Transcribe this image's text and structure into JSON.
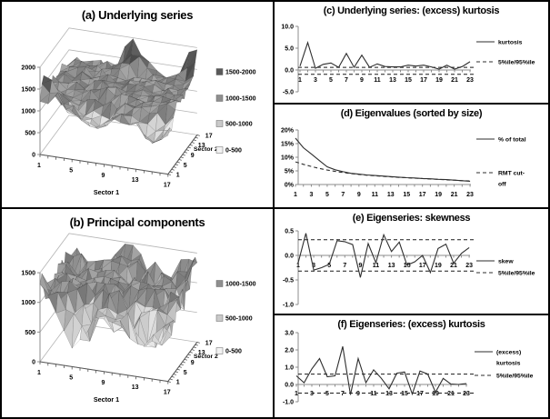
{
  "figure_caption": "six-panel statistics figure",
  "chart_data": [
    {
      "id": "a",
      "type": "surface3d",
      "title": "(a) Underlying series",
      "xlabel": "Sector 1",
      "ylabel": "Sector 2",
      "x_ticks": [
        1,
        5,
        9,
        13,
        17
      ],
      "y_ticks": [
        1,
        5,
        9,
        13,
        17
      ],
      "grid_size": 17,
      "zlim": [
        0,
        2000
      ],
      "z_ticks": [
        {
          "v": 0,
          "label": "0"
        },
        {
          "v": 500,
          "label": "500"
        },
        {
          "v": 1000,
          "label": "1000"
        },
        {
          "v": 1500,
          "label": "1500"
        },
        {
          "v": 2000,
          "label": "2000"
        }
      ],
      "legend": [
        {
          "label": "1500-2000",
          "color": "#595959"
        },
        {
          "label": "1000-1500",
          "color": "#8f8f8f"
        },
        {
          "label": "500-1000",
          "color": "#c9c9c9"
        },
        {
          "label": "0-500",
          "color": "#f2f2f2"
        }
      ],
      "bands": [
        [
          0,
          "#f2f2f2"
        ],
        [
          500,
          "#c9c9c9"
        ],
        [
          1000,
          "#8f8f8f"
        ],
        [
          1500,
          "#595959"
        ]
      ],
      "surface": {
        "seed": 7,
        "base": 1270,
        "noise": 160,
        "clamp": [
          60,
          1980
        ],
        "features": [
          [
            650,
            8,
            16,
            2.5
          ],
          [
            620,
            16,
            16,
            3
          ],
          [
            420,
            0,
            2,
            3
          ],
          [
            -420,
            7,
            1,
            10
          ],
          [
            -260,
            3,
            4,
            6
          ],
          [
            -420,
            13,
            1,
            3
          ],
          [
            -500,
            15,
            1,
            4
          ]
        ]
      },
      "shape_note": "plateau ~1000-1500 with valley in front-middle and spikes to ~2000 at back-middle, back-right and front-left corners"
    },
    {
      "id": "b",
      "type": "surface3d",
      "title": "(b) Principal components",
      "xlabel": "Sector 1",
      "ylabel": "Sector 2",
      "x_ticks": [
        1,
        5,
        9,
        13,
        17
      ],
      "y_ticks": [
        1,
        5,
        9,
        13,
        17
      ],
      "grid_size": 17,
      "zlim": [
        0,
        1500
      ],
      "z_ticks": [
        {
          "v": 0,
          "label": "0"
        },
        {
          "v": 500,
          "label": "500"
        },
        {
          "v": 1000,
          "label": "1000"
        },
        {
          "v": 1500,
          "label": "1500"
        }
      ],
      "legend": [
        {
          "label": "1000-1500",
          "color": "#8f8f8f"
        },
        {
          "label": "500-1000",
          "color": "#c9c9c9"
        },
        {
          "label": "0-500",
          "color": "#f2f2f2"
        }
      ],
      "bands": [
        [
          0,
          "#f2f2f2"
        ],
        [
          500,
          "#c9c9c9"
        ],
        [
          1000,
          "#8f8f8f"
        ]
      ],
      "surface": {
        "seed": 13,
        "base": 1060,
        "noise": 240,
        "clamp": [
          80,
          1470
        ],
        "features": [
          [
            460,
            8,
            16,
            2.5
          ],
          [
            430,
            16,
            15,
            3
          ],
          [
            330,
            0,
            1,
            2.5
          ],
          [
            -520,
            4,
            0,
            1.5
          ],
          [
            -420,
            6,
            1,
            1.2
          ],
          [
            -380,
            9,
            0,
            1.5
          ],
          [
            -550,
            14,
            1,
            5
          ],
          [
            -260,
            11,
            2,
            2
          ]
        ]
      },
      "shape_note": "jagged band ~900-1300 floating above floor, downward spikes toward 500 at the front, peaks to ~1500 at corners"
    },
    {
      "id": "c",
      "type": "line",
      "title": "(c) Underlying series: (excess) kurtosis",
      "ylim": [
        -5,
        10
      ],
      "y_ticks": [
        {
          "v": 10,
          "label": "10.0"
        },
        {
          "v": 5,
          "label": "5.0"
        },
        {
          "v": 0,
          "label": "0.0"
        },
        {
          "v": -5,
          "label": "-5.0"
        }
      ],
      "x": [
        1,
        2,
        3,
        4,
        5,
        6,
        7,
        8,
        9,
        10,
        11,
        12,
        13,
        14,
        15,
        16,
        17,
        18,
        19,
        20,
        21,
        22,
        23
      ],
      "x_tick_labels": [
        1,
        3,
        5,
        7,
        9,
        11,
        13,
        15,
        17,
        19,
        21,
        23
      ],
      "series": [
        {
          "name": "kurtosis",
          "style": "solid",
          "values": [
            0.9,
            6.3,
            0.4,
            1.3,
            1.6,
            0.6,
            3.8,
            0.6,
            3.4,
            0.6,
            1.4,
            0.8,
            0.7,
            0.7,
            1.1,
            0.9,
            1.1,
            0.7,
            0.2,
            1.1,
            0.2,
            0.8,
            1.9
          ]
        }
      ],
      "ref_lines": {
        "name": "5%ile/95%ile",
        "style": "dashed",
        "values": [
          0.6,
          -1.0
        ]
      },
      "legend": [
        {
          "label_lines": [
            "kurtosis"
          ],
          "style": "solid"
        },
        {
          "label_lines": [
            "5%ile/95%ile"
          ],
          "style": "dashed"
        }
      ]
    },
    {
      "id": "d",
      "type": "line",
      "title": "(d) Eigenvalues (sorted by size)",
      "ylim": [
        0,
        20
      ],
      "y_ticks": [
        {
          "v": 20,
          "label": "20%"
        },
        {
          "v": 15,
          "label": "15%"
        },
        {
          "v": 10,
          "label": "10%"
        },
        {
          "v": 5,
          "label": "5%"
        },
        {
          "v": 0,
          "label": "0%"
        }
      ],
      "x": [
        1,
        2,
        3,
        4,
        5,
        6,
        7,
        8,
        9,
        10,
        11,
        12,
        13,
        14,
        15,
        16,
        17,
        18,
        19,
        20,
        21,
        22,
        23
      ],
      "x_tick_labels": [
        1,
        3,
        5,
        7,
        9,
        11,
        13,
        15,
        17,
        19,
        21,
        23
      ],
      "series": [
        {
          "name": "% of total",
          "style": "solid",
          "values": [
            17.0,
            13.5,
            11.2,
            8.8,
            6.5,
            5.4,
            4.7,
            4.1,
            3.8,
            3.5,
            3.3,
            3.1,
            2.9,
            2.7,
            2.5,
            2.4,
            2.2,
            2.1,
            1.9,
            1.8,
            1.6,
            1.4,
            1.2
          ]
        },
        {
          "name": "RMT cut-off",
          "style": "dashed",
          "values": [
            8.3,
            7.4,
            6.6,
            5.9,
            5.3,
            4.8,
            4.4,
            4.0,
            3.7,
            3.4,
            3.2,
            3.0,
            2.8,
            2.6,
            2.5,
            2.3,
            2.2,
            2.0,
            1.9,
            1.7,
            1.6,
            1.4,
            1.3
          ]
        }
      ],
      "legend": [
        {
          "label_lines": [
            "% of total"
          ],
          "style": "solid"
        },
        {
          "label_lines": [
            "RMT cut-",
            "off"
          ],
          "style": "dashed"
        }
      ]
    },
    {
      "id": "e",
      "type": "line",
      "title": "(e) Eigenseries: skewness",
      "ylim": [
        -1,
        0.5
      ],
      "y_ticks": [
        {
          "v": 0.5,
          "label": "0.5"
        },
        {
          "v": 0,
          "label": "0.0"
        },
        {
          "v": -0.5,
          "label": "-0.5"
        },
        {
          "v": -1,
          "label": "-1.0"
        }
      ],
      "x": [
        1,
        2,
        3,
        4,
        5,
        6,
        7,
        8,
        9,
        10,
        11,
        12,
        13,
        14,
        15,
        16,
        17,
        18,
        19,
        20,
        21,
        22,
        23
      ],
      "x_tick_labels": [
        1,
        3,
        5,
        7,
        9,
        11,
        13,
        15,
        17,
        19,
        21,
        23
      ],
      "series": [
        {
          "name": "skew",
          "style": "solid",
          "values": [
            -0.15,
            0.45,
            -0.3,
            -0.25,
            -0.18,
            0.3,
            0.28,
            0.22,
            -0.45,
            0.24,
            -0.15,
            0.42,
            0.08,
            0.27,
            -0.2,
            -0.13,
            0.0,
            -0.35,
            0.14,
            0.23,
            -0.16,
            0.04,
            0.16
          ]
        }
      ],
      "ref_lines": {
        "name": "5%ile/95%ile",
        "style": "dashed",
        "values": [
          0.32,
          -0.32
        ]
      },
      "legend": [
        {
          "label_lines": [
            "skew"
          ],
          "style": "solid"
        },
        {
          "label_lines": [
            "5%ile/95%ile"
          ],
          "style": "dashed"
        }
      ]
    },
    {
      "id": "f",
      "type": "line",
      "title": "(f) Eigenseries: (excess) kurtosis",
      "ylim": [
        -1,
        3
      ],
      "y_ticks": [
        {
          "v": 3,
          "label": "3.0"
        },
        {
          "v": 2,
          "label": "2.0"
        },
        {
          "v": 1,
          "label": "1.0"
        },
        {
          "v": 0,
          "label": "0.0"
        },
        {
          "v": -1,
          "label": "-1.0"
        }
      ],
      "x": [
        1,
        2,
        3,
        4,
        5,
        6,
        7,
        8,
        9,
        10,
        11,
        12,
        13,
        14,
        15,
        16,
        17,
        18,
        19,
        20,
        21,
        22,
        23
      ],
      "x_tick_labels": [
        1,
        3,
        5,
        7,
        9,
        11,
        13,
        15,
        17,
        19,
        21,
        23
      ],
      "series": [
        {
          "name": "(excess) kurtosis",
          "style": "solid",
          "values": [
            0.5,
            0.1,
            0.9,
            1.5,
            0.45,
            0.5,
            2.2,
            -0.6,
            1.5,
            0.1,
            0.85,
            0.35,
            -0.25,
            0.65,
            0.72,
            -0.55,
            0.78,
            0.6,
            -0.45,
            0.35,
            0.02,
            0.0,
            0.05
          ]
        }
      ],
      "ref_lines": {
        "name": "5%ile/95%ile",
        "style": "dashed",
        "values": [
          0.6,
          -0.5
        ]
      },
      "legend": [
        {
          "label_lines": [
            "(excess)",
            "kurtosis"
          ],
          "style": "solid"
        },
        {
          "label_lines": [
            "5%ile/95%ile"
          ],
          "style": "dashed"
        }
      ]
    }
  ]
}
